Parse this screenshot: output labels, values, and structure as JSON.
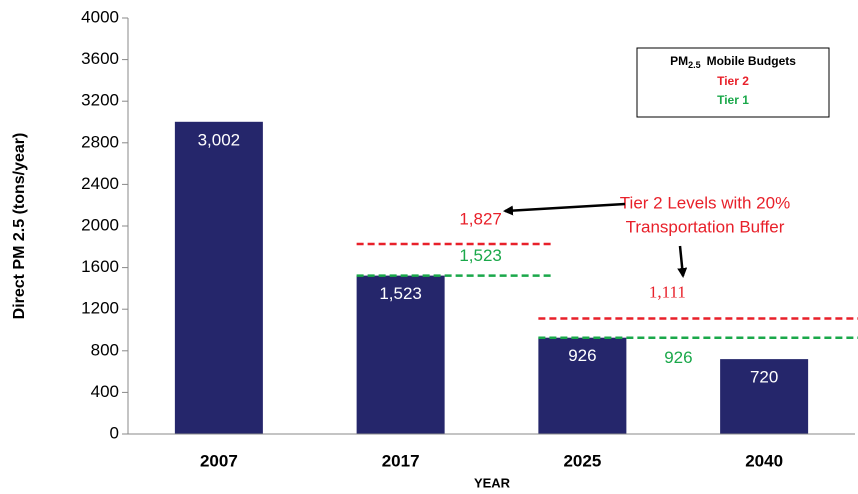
{
  "chart_data": {
    "type": "bar",
    "categories": [
      "2007",
      "2017",
      "2025",
      "2040"
    ],
    "values": [
      3002,
      1523,
      926,
      720
    ],
    "value_labels": [
      "3,002",
      "1,523",
      "926",
      "720"
    ],
    "color": "#25266b",
    "ylim": [
      0,
      4000
    ],
    "yticks": [
      0,
      400,
      800,
      1200,
      1600,
      2000,
      2400,
      2800,
      3200,
      3600,
      4000
    ],
    "y_label": "Direct PM 2.5 (tons/year)",
    "x_label": "YEAR",
    "legend": {
      "title": [
        "PM",
        "2.5",
        "Mobile Budgets"
      ]
    },
    "budgets": [
      {
        "name": "Tier 2",
        "color": "#e8202a",
        "segments": [
          {
            "categories": [
              "2017"
            ],
            "value": 1827,
            "value_label": "1,827"
          },
          {
            "categories": [
              "2025",
              "2040"
            ],
            "value": 1111,
            "value_label": "1,111"
          }
        ]
      },
      {
        "name": "Tier 1",
        "color": "#1aa84a",
        "segments": [
          {
            "categories": [
              "2017"
            ],
            "value": 1523,
            "value_label": "1,523"
          },
          {
            "categories": [
              "2025",
              "2040"
            ],
            "value": 926,
            "value_label": "926"
          }
        ]
      }
    ],
    "annotation": [
      "Tier 2 Levels with 20%",
      "Transportation Buffer"
    ]
  }
}
